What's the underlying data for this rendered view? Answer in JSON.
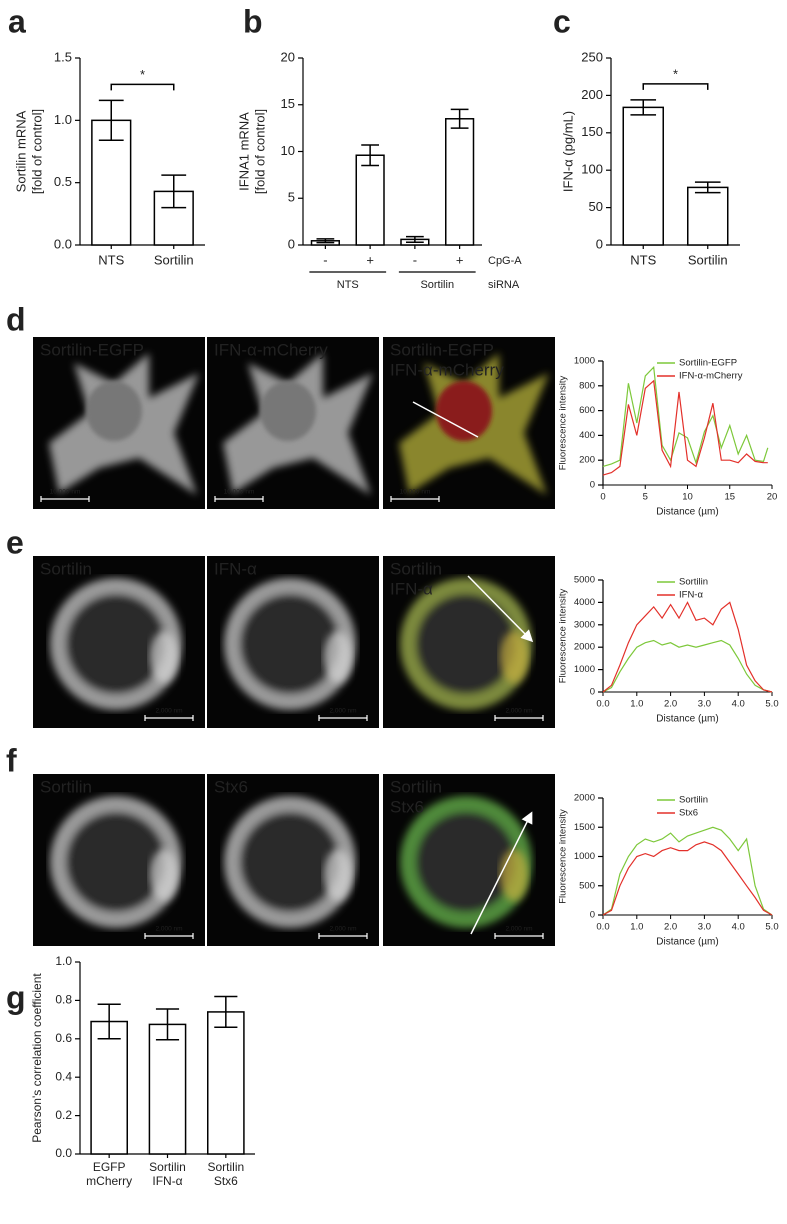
{
  "chart_data": [
    {
      "type": "bar",
      "panel": "a",
      "ylabel": [
        "Sortilin mRNA",
        "[fold of control]"
      ],
      "categories": [
        "NTS",
        "Sortilin"
      ],
      "values": [
        1.0,
        0.43
      ],
      "errors": [
        0.16,
        0.13
      ],
      "color": "#ffffff",
      "edgecolor": "#000000",
      "ylim": [
        0,
        1.5
      ],
      "yticks": [
        {
          "value": 0,
          "label": "0.0"
        },
        {
          "value": 0.5,
          "label": "0.5"
        },
        {
          "value": 1,
          "label": "1.0"
        },
        {
          "value": 1.5,
          "label": "1.5"
        }
      ],
      "significance": "*"
    },
    {
      "type": "bar",
      "panel": "b",
      "ylabel": [
        "IFNA1 mRNA",
        "[fold of control]"
      ],
      "categories": [
        "-",
        "+",
        "-",
        "+"
      ],
      "values": [
        0.45,
        9.6,
        0.6,
        13.5
      ],
      "errors": [
        0.2,
        1.1,
        0.3,
        1.0
      ],
      "color": "#ffffff",
      "edgecolor": "#000000",
      "ylim": [
        0,
        20
      ],
      "yticks": [
        0,
        5,
        10,
        15,
        20
      ],
      "category_row_label": "CpG-A",
      "groups": [
        "NTS",
        "Sortilin"
      ],
      "group_row_label": "siRNA"
    },
    {
      "type": "bar",
      "panel": "c",
      "ylabel": [
        "IFN-α (pg/mL)"
      ],
      "categories": [
        "NTS",
        "Sortilin"
      ],
      "values": [
        184,
        77
      ],
      "errors": [
        10,
        7
      ],
      "color": "#ffffff",
      "edgecolor": "#000000",
      "ylim": [
        0,
        250
      ],
      "yticks": [
        0,
        50,
        100,
        150,
        200,
        250
      ],
      "significance": "*"
    },
    {
      "type": "line",
      "panel": "d",
      "xlabel": "Distance (µm)",
      "ylabel": [
        "Fluorescence intensity"
      ],
      "x": [
        0,
        1,
        2,
        3,
        4,
        5,
        6,
        7,
        8,
        9,
        10,
        11,
        12,
        13,
        14,
        15,
        16,
        17,
        18,
        19,
        19.5
      ],
      "series": [
        {
          "name": "Sortilin-EGFP",
          "color": "#7dc83a",
          "values": [
            150,
            170,
            200,
            820,
            500,
            880,
            950,
            320,
            200,
            420,
            380,
            180,
            430,
            560,
            300,
            480,
            250,
            400,
            200,
            190,
            300
          ]
        },
        {
          "name": "IFN-α-mCherry",
          "color": "#e3302a",
          "values": [
            80,
            100,
            150,
            650,
            400,
            780,
            840,
            280,
            150,
            750,
            200,
            150,
            380,
            660,
            200,
            200,
            180,
            250,
            190,
            180,
            180
          ]
        }
      ],
      "xlim": [
        0,
        20
      ],
      "xticks": [
        0,
        5,
        10,
        15,
        20
      ],
      "ylim": [
        0,
        1000
      ],
      "yticks": [
        0,
        200,
        400,
        600,
        800,
        1000
      ],
      "legend": "upper right"
    },
    {
      "type": "line",
      "panel": "e",
      "xlabel": "Distance (µm)",
      "ylabel": [
        "Fluorescence intensity"
      ],
      "x": [
        0,
        0.25,
        0.5,
        0.75,
        1,
        1.25,
        1.5,
        1.75,
        2,
        2.25,
        2.5,
        2.75,
        3,
        3.25,
        3.5,
        3.75,
        4,
        4.25,
        4.5,
        4.75,
        5
      ],
      "series": [
        {
          "name": "Sortilin",
          "color": "#7dc83a",
          "values": [
            0,
            200,
            900,
            1500,
            2000,
            2200,
            2300,
            2100,
            2200,
            2000,
            2100,
            2000,
            2100,
            2200,
            2300,
            2100,
            1500,
            800,
            300,
            100,
            0
          ]
        },
        {
          "name": "IFN-α",
          "color": "#e3302a",
          "values": [
            0,
            300,
            1200,
            2200,
            3000,
            3400,
            3800,
            3300,
            3900,
            3300,
            4000,
            3200,
            3300,
            3000,
            3700,
            4000,
            2800,
            1200,
            500,
            100,
            0
          ]
        }
      ],
      "xlim": [
        0,
        5
      ],
      "xticks": [
        {
          "value": 0,
          "label": "0.0"
        },
        {
          "value": 1,
          "label": "1.0"
        },
        {
          "value": 2,
          "label": "2.0"
        },
        {
          "value": 3,
          "label": "3.0"
        },
        {
          "value": 4,
          "label": "4.0"
        },
        {
          "value": 5,
          "label": "5.0"
        }
      ],
      "ylim": [
        0,
        5000
      ],
      "yticks": [
        0,
        1000,
        2000,
        3000,
        4000,
        5000
      ],
      "legend": "upper right"
    },
    {
      "type": "line",
      "panel": "f",
      "xlabel": "Distance (µm)",
      "ylabel": [
        "Fluorescence intensity"
      ],
      "x": [
        0,
        0.25,
        0.5,
        0.75,
        1,
        1.25,
        1.5,
        1.75,
        2,
        2.25,
        2.5,
        2.75,
        3,
        3.25,
        3.5,
        3.75,
        4,
        4.25,
        4.5,
        4.75,
        5
      ],
      "series": [
        {
          "name": "Sortilin",
          "color": "#7dc83a",
          "values": [
            0,
            100,
            700,
            1000,
            1200,
            1300,
            1250,
            1300,
            1400,
            1250,
            1350,
            1400,
            1450,
            1500,
            1450,
            1300,
            1100,
            1300,
            500,
            100,
            0
          ]
        },
        {
          "name": "Stx6",
          "color": "#e3302a",
          "values": [
            0,
            80,
            500,
            800,
            1000,
            1050,
            1000,
            1100,
            1150,
            1100,
            1100,
            1200,
            1250,
            1200,
            1100,
            900,
            700,
            500,
            300,
            80,
            0
          ]
        }
      ],
      "xlim": [
        0,
        5
      ],
      "xticks": [
        {
          "value": 0,
          "label": "0.0"
        },
        {
          "value": 1,
          "label": "1.0"
        },
        {
          "value": 2,
          "label": "2.0"
        },
        {
          "value": 3,
          "label": "3.0"
        },
        {
          "value": 4,
          "label": "4.0"
        },
        {
          "value": 5,
          "label": "5.0"
        }
      ],
      "ylim": [
        0,
        2000
      ],
      "yticks": [
        0,
        500,
        1000,
        1500,
        2000
      ],
      "legend": "upper right"
    },
    {
      "type": "bar",
      "panel": "g",
      "ylabel": [
        "Pearson's correlation coefficient"
      ],
      "categories": [
        [
          "EGFP",
          "mCherry"
        ],
        [
          "Sortilin",
          "IFN-α"
        ],
        [
          "Sortilin",
          "Stx6"
        ]
      ],
      "values": [
        0.69,
        0.675,
        0.74
      ],
      "errors": [
        0.09,
        0.08,
        0.08
      ],
      "color": "#ffffff",
      "edgecolor": "#000000",
      "ylim": [
        0,
        1
      ],
      "yticks": [
        {
          "value": 0,
          "label": "0.0"
        },
        {
          "value": 0.2,
          "label": "0.2"
        },
        {
          "value": 0.4,
          "label": "0.4"
        },
        {
          "value": 0.6,
          "label": "0.6"
        },
        {
          "value": 0.8,
          "label": "0.8"
        },
        {
          "value": 1,
          "label": "1.0"
        }
      ]
    }
  ],
  "image_panels": [
    {
      "tiles": [
        {
          "labels": [
            {
              "text": "Sortilin-EGFP",
              "color": "#ffffff"
            }
          ],
          "scale_bar": "10,000 nm"
        },
        {
          "labels": [
            {
              "text": "IFN-α-mCherry",
              "color": "#ffffff"
            }
          ],
          "scale_bar": "10,000 nm"
        },
        {
          "labels": [
            {
              "text": "Sortilin-EGFP",
              "color": "#6ad14a"
            },
            {
              "text": "IFN-α-mCherry",
              "color": "#e53b2e"
            }
          ],
          "scale_bar": "10,000 nm"
        }
      ]
    },
    {
      "tiles": [
        {
          "labels": [
            {
              "text": "Sortilin",
              "color": "#ffffff"
            }
          ],
          "scale_bar": "2,000 nm"
        },
        {
          "labels": [
            {
              "text": "IFN-α",
              "color": "#ffffff"
            }
          ],
          "scale_bar": "2,000 nm"
        },
        {
          "labels": [
            {
              "text": "Sortilin",
              "color": "#6ad14a"
            },
            {
              "text": "IFN-α",
              "color": "#e53b2e"
            }
          ],
          "scale_bar": "2,000 nm"
        }
      ]
    },
    {
      "tiles": [
        {
          "labels": [
            {
              "text": "Sortilin",
              "color": "#ffffff"
            }
          ],
          "scale_bar": "2,000 nm"
        },
        {
          "labels": [
            {
              "text": "Stx6",
              "color": "#ffffff"
            }
          ],
          "scale_bar": "2,000 nm"
        },
        {
          "labels": [
            {
              "text": "Sortilin",
              "color": "#6ad14a"
            },
            {
              "text": "Stx6",
              "color": "#e53b2e"
            }
          ],
          "scale_bar": "2,000 nm"
        }
      ]
    }
  ]
}
